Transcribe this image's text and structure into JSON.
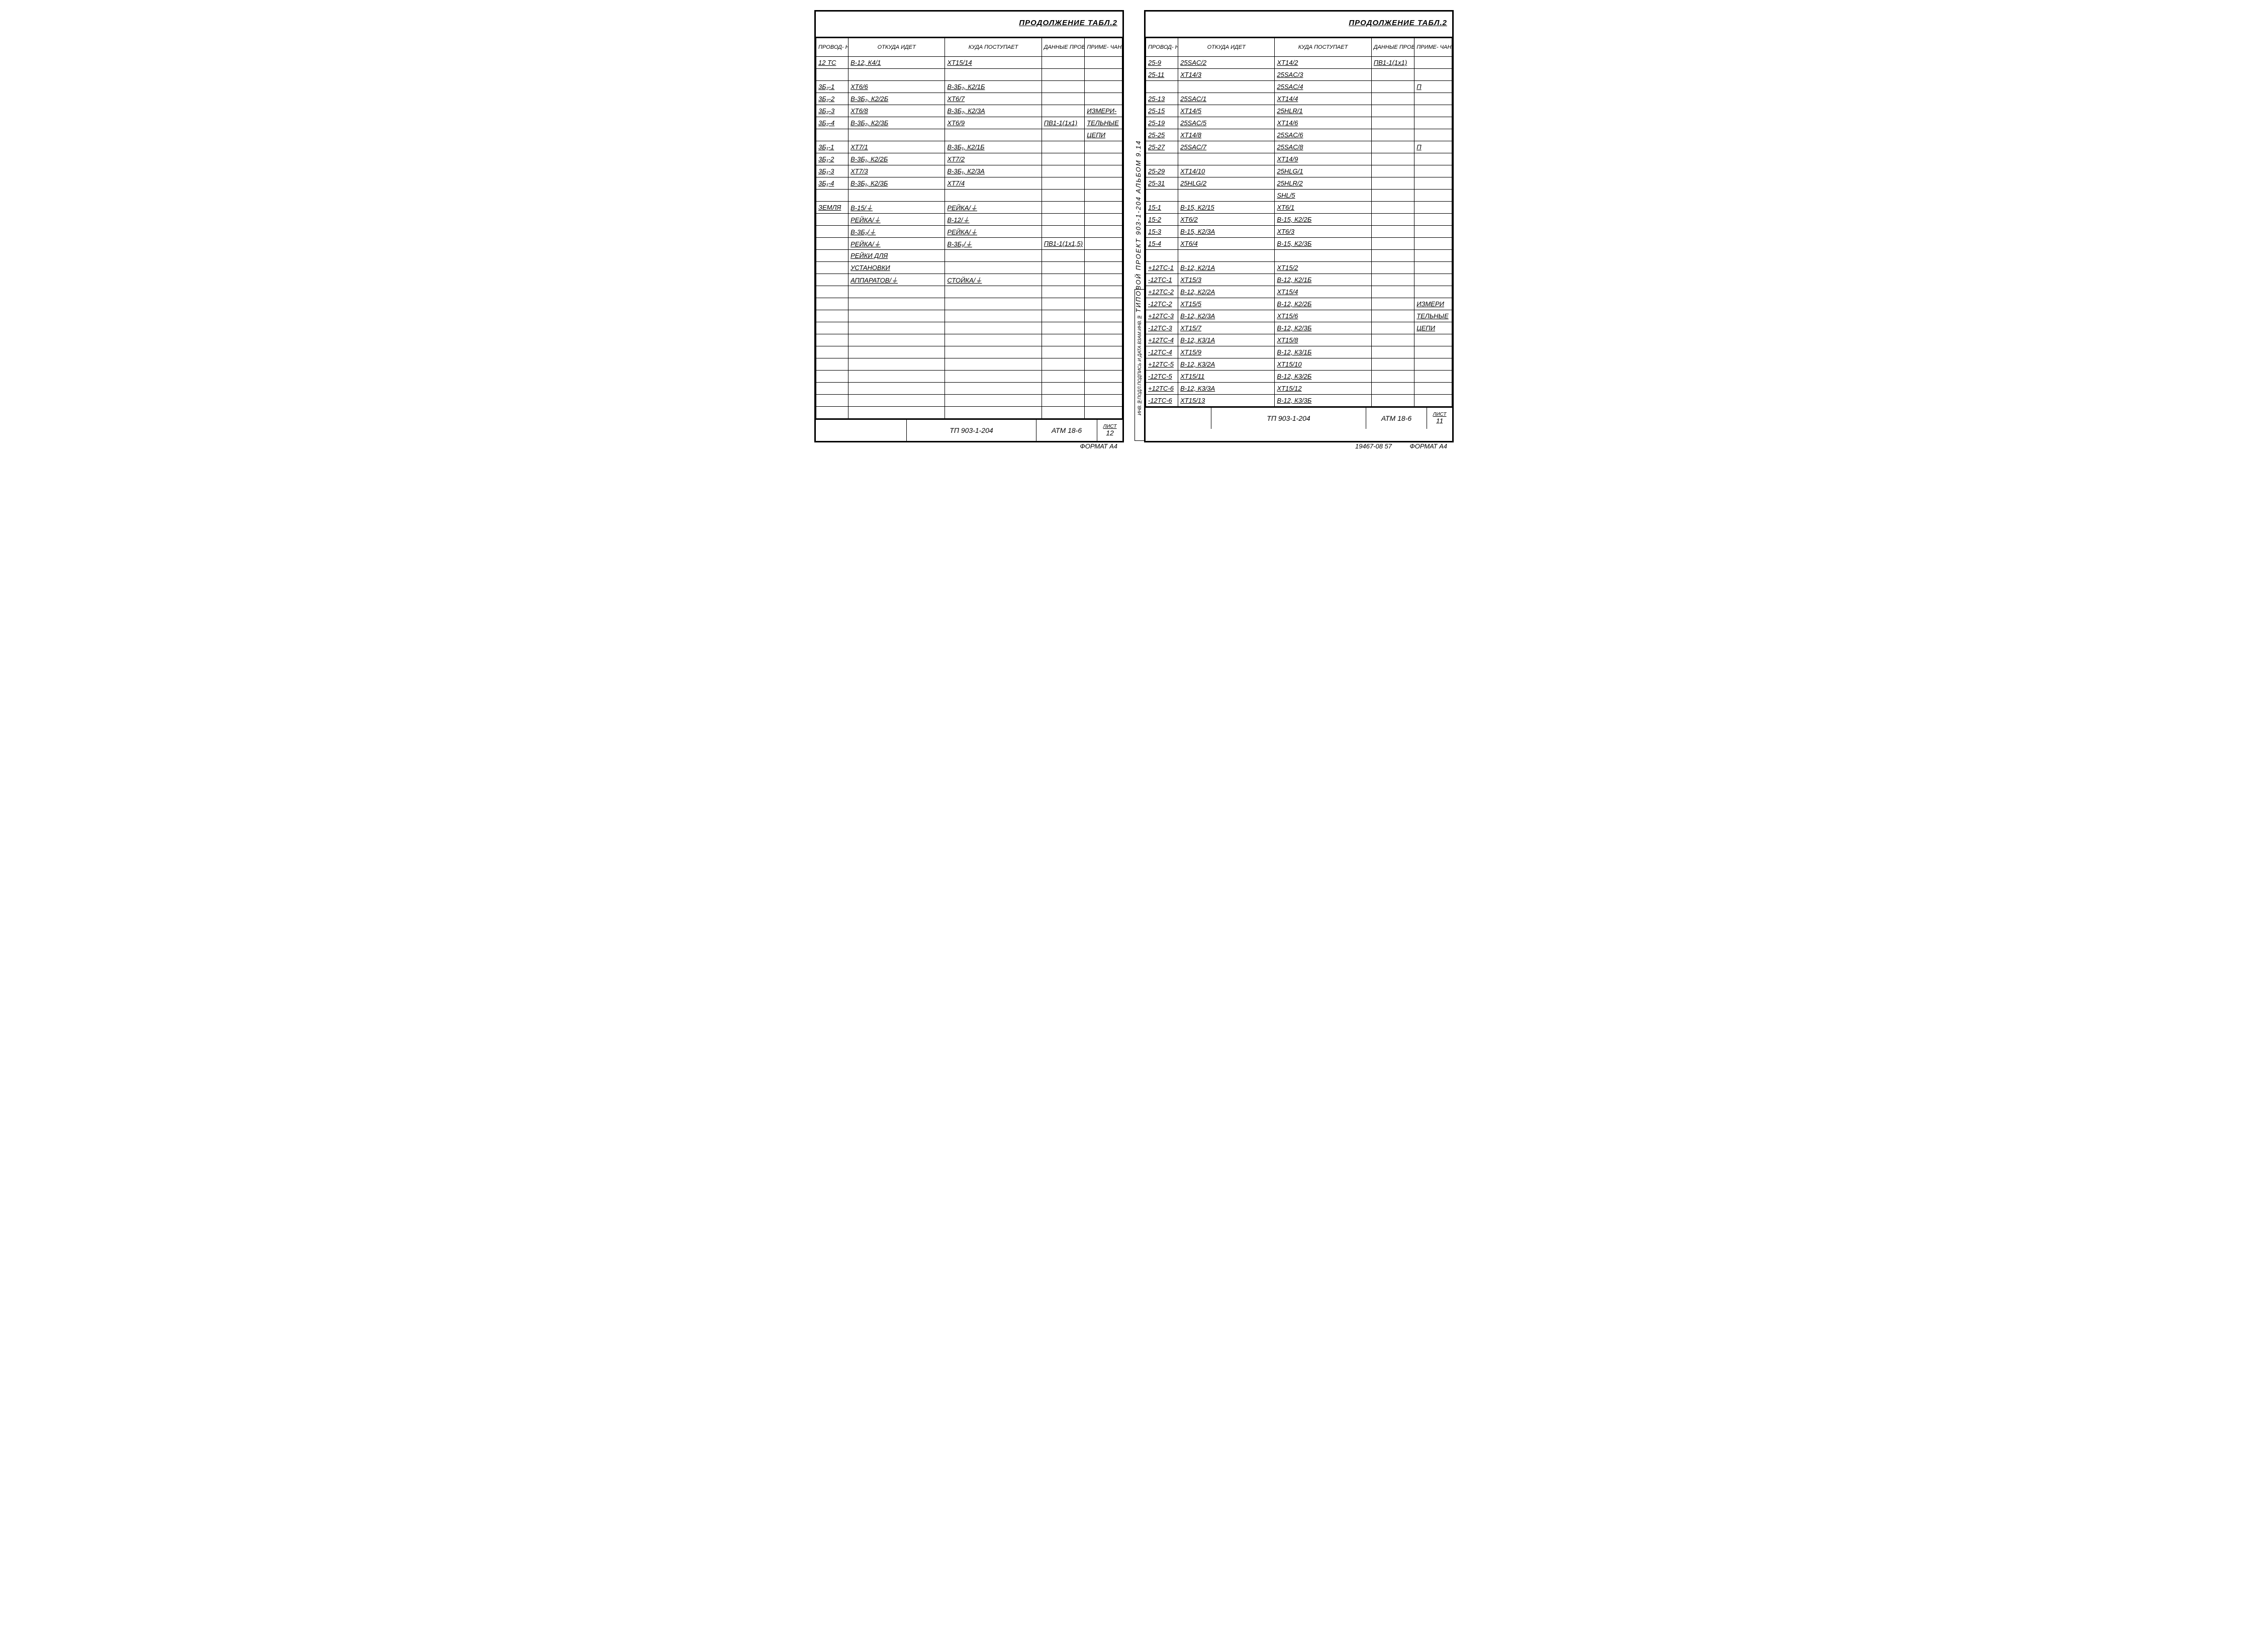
{
  "title": "ПРОДОЛЖЕНИЕ ТАБЛ.2",
  "headers": {
    "c1": "ПРОВОД-\nНИК",
    "c2": "ОТКУДА ИДЕТ",
    "c3": "КУДА ПОСТУПАЕТ",
    "c4": "ДАННЫЕ\nПРОВОДА",
    "c5": "ПРИМЕ-\nЧАНИЕ"
  },
  "left_rows": [
    {
      "c1": "12 ТС",
      "c2": "В-12, К4/1",
      "c3": "ХТ15/14",
      "c4": "",
      "c5": ""
    },
    {
      "c1": "",
      "c2": "",
      "c3": "",
      "c4": "",
      "c5": ""
    },
    {
      "c1": "3Б₂-1",
      "c2": "ХТ6/6",
      "c3": "В-3Б₂, К2/1Б",
      "c4": "",
      "c5": ""
    },
    {
      "c1": "3Б₂-2",
      "c2": "В-3Б₂, К2/2Б",
      "c3": "ХТ6/7",
      "c4": "",
      "c5": ""
    },
    {
      "c1": "3Б₂-3",
      "c2": "ХТ6/8",
      "c3": "В-3Б₂, К2/3А",
      "c4": "",
      "c5": "ИЗМЕРИ-"
    },
    {
      "c1": "3Б₂-4",
      "c2": "В-3Б₂, К2/3Б",
      "c3": "ХТ6/9",
      "c4": "ПВ1-1(1x1)",
      "c5": "ТЕЛЬНЫЕ"
    },
    {
      "c1": "",
      "c2": "",
      "c3": "",
      "c4": "",
      "c5": "ЦЕПИ"
    },
    {
      "c1": "3Б₁-1",
      "c2": "ХТ7/1",
      "c3": "В-3Б₁, К2/1Б",
      "c4": "",
      "c5": ""
    },
    {
      "c1": "3Б₁-2",
      "c2": "В-3Б₁, К2/2Б",
      "c3": "ХТ7/2",
      "c4": "",
      "c5": ""
    },
    {
      "c1": "3Б₁-3",
      "c2": "ХТ7/3",
      "c3": "В-3Б₁, К2/3А",
      "c4": "",
      "c5": ""
    },
    {
      "c1": "3Б₁-4",
      "c2": "В-3Б₁, К2/3Б",
      "c3": "ХТ7/4",
      "c4": "",
      "c5": ""
    },
    {
      "c1": "",
      "c2": "",
      "c3": "",
      "c4": "",
      "c5": ""
    },
    {
      "c1": "ЗЕМЛЯ",
      "c2": "В-15/⏚",
      "c3": "РЕЙКА/⏚",
      "c4": "",
      "c5": ""
    },
    {
      "c1": "",
      "c2": "РЕЙКА/⏚",
      "c3": "В-12/⏚",
      "c4": "",
      "c5": ""
    },
    {
      "c1": "",
      "c2": "В-3Б₂/⏚",
      "c3": "РЕЙКА/⏚",
      "c4": "",
      "c5": ""
    },
    {
      "c1": "",
      "c2": "РЕЙКА/⏚",
      "c3": "В-3Б₁/⏚",
      "c4": "ПВ1-1(1x1,5)",
      "c5": ""
    },
    {
      "c1": "",
      "c2": "РЕЙКИ  ДЛЯ",
      "c3": "",
      "c4": "",
      "c5": ""
    },
    {
      "c1": "",
      "c2": "УСТАНОВКИ",
      "c3": "",
      "c4": "",
      "c5": ""
    },
    {
      "c1": "",
      "c2": "АППАРАТОВ/⏚",
      "c3": "СТОЙКА/⏚",
      "c4": "",
      "c5": ""
    },
    {
      "c1": "",
      "c2": "",
      "c3": "",
      "c4": "",
      "c5": ""
    },
    {
      "c1": "",
      "c2": "",
      "c3": "",
      "c4": "",
      "c5": ""
    },
    {
      "c1": "",
      "c2": "",
      "c3": "",
      "c4": "",
      "c5": ""
    },
    {
      "c1": "",
      "c2": "",
      "c3": "",
      "c4": "",
      "c5": ""
    },
    {
      "c1": "",
      "c2": "",
      "c3": "",
      "c4": "",
      "c5": ""
    },
    {
      "c1": "",
      "c2": "",
      "c3": "",
      "c4": "",
      "c5": ""
    },
    {
      "c1": "",
      "c2": "",
      "c3": "",
      "c4": "",
      "c5": ""
    },
    {
      "c1": "",
      "c2": "",
      "c3": "",
      "c4": "",
      "c5": ""
    },
    {
      "c1": "",
      "c2": "",
      "c3": "",
      "c4": "",
      "c5": ""
    },
    {
      "c1": "",
      "c2": "",
      "c3": "",
      "c4": "",
      "c5": ""
    },
    {
      "c1": "",
      "c2": "",
      "c3": "",
      "c4": "",
      "c5": ""
    }
  ],
  "right_rows": [
    {
      "c1": "25-9",
      "c2": "25SAС/2",
      "c3": "ХТ14/2",
      "c4": "ПВ1-1(1x1)",
      "c5": ""
    },
    {
      "c1": "25-11",
      "c2": "ХТ14/3",
      "c3": "25SAС/3",
      "c4": "",
      "c5": ""
    },
    {
      "c1": "",
      "c2": "",
      "c3": "25SAС/4",
      "c4": "",
      "c5": "П"
    },
    {
      "c1": "25-13",
      "c2": "25SAС/1",
      "c3": "ХТ14/4",
      "c4": "",
      "c5": ""
    },
    {
      "c1": "25-15",
      "c2": "ХТ14/5",
      "c3": "25HLR/1",
      "c4": "",
      "c5": ""
    },
    {
      "c1": "25-19",
      "c2": "25SAС/5",
      "c3": "ХТ14/6",
      "c4": "",
      "c5": ""
    },
    {
      "c1": "25-25",
      "c2": "ХТ14/8",
      "c3": "25SAС/6",
      "c4": "",
      "c5": ""
    },
    {
      "c1": "25-27",
      "c2": "25SAС/7",
      "c3": "25SAС/8",
      "c4": "",
      "c5": "П"
    },
    {
      "c1": "",
      "c2": "",
      "c3": "ХТ14/9",
      "c4": "",
      "c5": ""
    },
    {
      "c1": "25-29",
      "c2": "ХТ14/10",
      "c3": "25HLG/1",
      "c4": "",
      "c5": ""
    },
    {
      "c1": "25-31",
      "c2": "25HLG/2",
      "c3": "25HLR/2",
      "c4": "",
      "c5": ""
    },
    {
      "c1": "",
      "c2": "",
      "c3": "SHL/5",
      "c4": "",
      "c5": ""
    },
    {
      "c1": "15-1",
      "c2": "В-15, К2/15",
      "c3": "ХТ6/1",
      "c4": "",
      "c5": ""
    },
    {
      "c1": "15-2",
      "c2": "ХТ6/2",
      "c3": "В-15, К2/2Б",
      "c4": "",
      "c5": ""
    },
    {
      "c1": "15-3",
      "c2": "В-15, К2/3А",
      "c3": "ХТ6/3",
      "c4": "",
      "c5": ""
    },
    {
      "c1": "15-4",
      "c2": "ХТ6/4",
      "c3": "В-15, К2/3Б",
      "c4": "",
      "c5": ""
    },
    {
      "c1": "",
      "c2": "",
      "c3": "",
      "c4": "",
      "c5": ""
    },
    {
      "c1": "+12ТС-1",
      "c2": "В-12, К2/1А",
      "c3": "ХТ15/2",
      "c4": "",
      "c5": ""
    },
    {
      "c1": "-12ТС-1",
      "c2": "ХТ15/3",
      "c3": "В-12, К2/1Б",
      "c4": "",
      "c5": ""
    },
    {
      "c1": "+12ТС-2",
      "c2": "В-12, К2/2А",
      "c3": "ХТ15/4",
      "c4": "",
      "c5": ""
    },
    {
      "c1": "-12ТС-2",
      "c2": "ХТ15/5",
      "c3": "В-12, К2/2Б",
      "c4": "",
      "c5": "ИЗМЕРИ"
    },
    {
      "c1": "+12ТС-3",
      "c2": "В-12, К2/3А",
      "c3": "ХТ15/6",
      "c4": "",
      "c5": "ТЕЛЬНЫЕ"
    },
    {
      "c1": "-12ТС-3",
      "c2": "ХТ15/7",
      "c3": "В-12, К2/3Б",
      "c4": "",
      "c5": "ЦЕПИ"
    },
    {
      "c1": "+12ТС-4",
      "c2": "В-12, К3/1А",
      "c3": "ХТ15/8",
      "c4": "",
      "c5": ""
    },
    {
      "c1": "-12ТС-4",
      "c2": "ХТ15/9",
      "c3": "В-12, К3/1Б",
      "c4": "",
      "c5": ""
    },
    {
      "c1": "+12ТС-5",
      "c2": "В-12, К3/2А",
      "c3": "ХТ15/10",
      "c4": "",
      "c5": ""
    },
    {
      "c1": "-12ТС-5",
      "c2": "ХТ15/11",
      "c3": "В-12, К3/2Б",
      "c4": "",
      "c5": ""
    },
    {
      "c1": "+12ТС-6",
      "c2": "В-12, К3/3А",
      "c3": "ХТ15/12",
      "c4": "",
      "c5": ""
    },
    {
      "c1": "-12ТС-6",
      "c2": "ХТ15/13",
      "c3": "В-12, К3/3Б",
      "c4": "",
      "c5": ""
    }
  ],
  "footer": {
    "tp": "ТП 903-1-204",
    "atm": "АТМ 18-6",
    "list_label": "ЛИСТ",
    "left_page": "12",
    "right_page": "11"
  },
  "side_text": "ТИПОВОЙ  ПРОЕКТ  903-1-204     АЛЬБОМ  9.14",
  "side_box": "ИНВ.№ПОДЛ.ПОДПИСЬ И ДАТА ВЗАМ.ИНВ.№",
  "format": "ФОРМАТ А4",
  "extra_footer": "19467-08   57"
}
